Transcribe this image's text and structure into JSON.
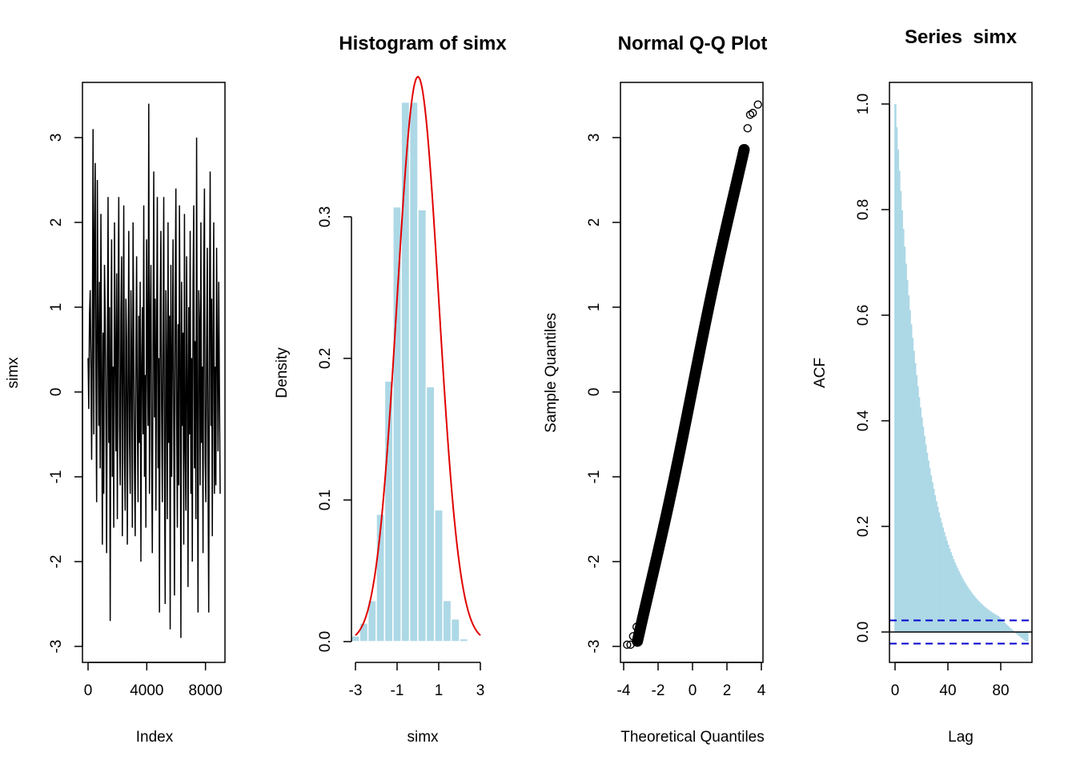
{
  "chart_data": [
    {
      "type": "line",
      "title": "",
      "xlabel": "Index",
      "ylabel": "simx",
      "xlim": [
        0,
        9000
      ],
      "ylim": [
        -3,
        3.5
      ],
      "x_ticks": [
        "0",
        "4000",
        "8000"
      ],
      "y_ticks": [
        "-3",
        "-2",
        "-1",
        "0",
        "1",
        "2",
        "3"
      ],
      "series": [
        {
          "color": "#000000",
          "values_sampled_every_100": [
            0.4,
            -0.2,
            0.9,
            1.2,
            0.3,
            -0.8,
            0.6,
            3.1,
            -0.5,
            1.8,
            2.7,
            0.1,
            -1.3,
            2.5,
            0.8,
            -0.4,
            1.3,
            -0.9,
            2.1,
            0.2,
            -1.8,
            0.7,
            -1.2,
            1.5,
            0.9,
            -0.3,
            -1.9,
            0.4,
            2.3,
            -0.6,
            1.0,
            -2.7,
            0.6,
            1.8,
            -1.0,
            0.3,
            -1.6,
            2.0,
            0.5,
            -0.7,
            1.4,
            -1.5,
            0.8,
            2.3,
            -0.4,
            -1.1,
            0.9,
            1.6,
            -1.7,
            0.2,
            2.2,
            -0.8,
            -1.4,
            1.1,
            0.6,
            -1.8,
            0.0,
            1.9,
            -0.5,
            -1.2,
            1.2,
            0.4,
            -1.6,
            2.0,
            0.7,
            -0.9,
            -1.7,
            0.5,
            1.6,
            -0.3,
            -1.3,
            0.9,
            -0.6,
            1.3,
            -2.0,
            0.3,
            1.0,
            -0.5,
            2.2,
            -1.0,
            0.2,
            -1.6,
            1.8,
            0.6,
            -0.4,
            3.4,
            -1.2,
            0.8,
            1.5,
            -0.7,
            -1.9,
            0.5,
            2.6,
            -0.3,
            1.1,
            -1.4,
            0.7,
            2.3,
            -0.9,
            0.4,
            -2.6,
            1.0,
            1.9,
            -0.2,
            -1.3,
            0.6,
            2.3,
            -0.8,
            -2.5,
            1.2,
            0.3,
            -1.5,
            2.0,
            -0.6,
            0.9,
            -2.8,
            1.5,
            -1.0,
            0.4,
            1.8,
            -0.5,
            -2.4,
            1.1,
            2.4,
            -0.2,
            -1.6,
            0.8,
            -1.1,
            2.2,
            0.5,
            -2.9,
            1.3,
            -0.4,
            0.7,
            -1.8,
            2.1,
            -0.7,
            -1.4,
            1.6,
            0.2,
            -2.3,
            1.0,
            -0.5,
            1.9,
            -1.2,
            0.4,
            -2.0,
            1.3,
            2.2,
            -0.9,
            0.6,
            -1.5,
            3.0,
            -0.3,
            -2.6,
            1.2,
            0.8,
            -1.1,
            2.0,
            -0.6,
            0.3,
            -1.9,
            1.4,
            2.4,
            -0.8,
            -1.3,
            0.5,
            1.7,
            -1.0,
            -2.6,
            0.9,
            2.6,
            -0.4,
            1.1,
            -1.7,
            0.7,
            2.0,
            -1.2,
            0.3,
            -1.1,
            1.7,
            0.5,
            -0.7,
            1.3,
            0.0,
            -1.2
          ]
        }
      ]
    },
    {
      "type": "bar",
      "title": "Histogram of simx",
      "xlabel": "simx",
      "ylabel": "Density",
      "xlim": [
        -3.5,
        3.5
      ],
      "ylim": [
        0,
        0.4
      ],
      "x_ticks": [
        "-3",
        "-1",
        "1",
        "3"
      ],
      "y_ticks": [
        "0.0",
        "0.1",
        "0.2",
        "0.3"
      ],
      "bin_edges": [
        -3.2,
        -2.8,
        -2.4,
        -2.0,
        -1.6,
        -1.2,
        -0.8,
        -0.4,
        0.0,
        0.4,
        0.8,
        1.2,
        1.6,
        2.0,
        2.4,
        2.8,
        3.2
      ],
      "values": [
        0.004,
        0.013,
        0.029,
        0.09,
        0.184,
        0.307,
        0.381,
        0.381,
        0.305,
        0.18,
        0.093,
        0.029,
        0.016,
        0.002,
        0.0,
        0.0
      ],
      "bar_color": "#ADD8E6",
      "density_curve": {
        "type": "normal",
        "mean": 0.0,
        "sd": 1.0,
        "color": "#E00000"
      }
    },
    {
      "type": "scatter",
      "title": "Normal Q-Q Plot",
      "xlabel": "Theoretical Quantiles",
      "ylabel": "Sample Quantiles",
      "xlim": [
        -4,
        4
      ],
      "ylim": [
        -3,
        3.5
      ],
      "x_ticks": [
        "-4",
        "-2",
        "0",
        "2",
        "4"
      ],
      "y_ticks": [
        "-3",
        "-2",
        "-1",
        "0",
        "1",
        "2",
        "3"
      ],
      "tail_points": [
        {
          "x": -3.8,
          "y": -2.98
        },
        {
          "x": -3.6,
          "y": -2.98
        },
        {
          "x": -3.45,
          "y": -2.88
        },
        {
          "x": -3.25,
          "y": -2.77
        },
        {
          "x": 3.05,
          "y": 2.83
        },
        {
          "x": 3.2,
          "y": 3.11
        },
        {
          "x": 3.35,
          "y": 3.27
        },
        {
          "x": 3.5,
          "y": 3.29
        },
        {
          "x": 3.8,
          "y": 3.39
        }
      ],
      "qq_line": {
        "slope": 0.95,
        "intercept": 0.05
      }
    },
    {
      "type": "bar",
      "title": "Series  simx",
      "xlabel": "Lag",
      "ylabel": "ACF",
      "xlim": [
        0,
        100
      ],
      "ylim": [
        -0.06,
        1.04
      ],
      "x_ticks": [
        "0",
        "40",
        "80"
      ],
      "y_ticks": [
        "0.0",
        "0.2",
        "0.4",
        "0.6",
        "0.8",
        "1.0"
      ],
      "acf_decay": 0.045,
      "max_lag": 100,
      "bar_color": "#ADD8E6",
      "confidence_band": 0.022,
      "band_color": "#0000CC"
    }
  ]
}
